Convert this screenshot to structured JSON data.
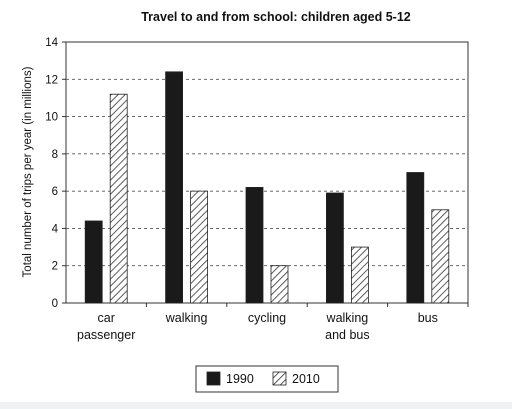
{
  "chart_data": {
    "type": "bar",
    "title": "Travel to and from school: children aged 5-12",
    "ylabel": "Total number of trips per year (in millions)",
    "xlabel": "",
    "ylim": [
      0,
      14
    ],
    "yticks": [
      0,
      2,
      4,
      6,
      8,
      10,
      12,
      14
    ],
    "grid": "horizontal-dashed",
    "legend_placement": "bottom-center",
    "categories": [
      [
        "car",
        "passenger"
      ],
      [
        "walking"
      ],
      [
        "cycling"
      ],
      [
        "walking",
        "and bus"
      ],
      [
        "bus"
      ]
    ],
    "series": [
      {
        "name": "1990",
        "pattern": "solid",
        "color": "#1a1a1a",
        "values": [
          4.4,
          12.4,
          6.2,
          5.9,
          7.0
        ]
      },
      {
        "name": "2010",
        "pattern": "hatched",
        "color": "#1a1a1a",
        "values": [
          11.2,
          6.0,
          2.0,
          3.0,
          5.0
        ]
      }
    ]
  }
}
